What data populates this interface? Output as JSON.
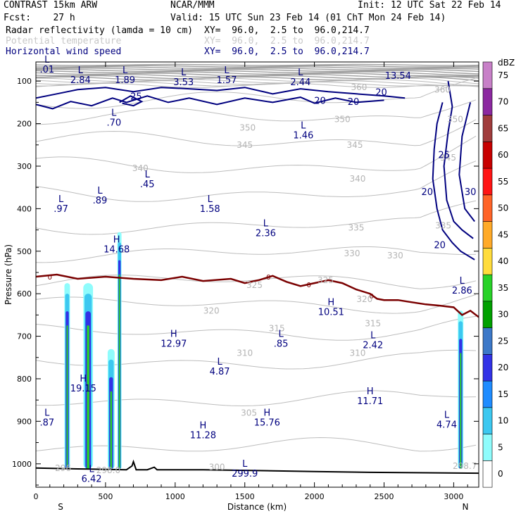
{
  "header": {
    "model": "CONTRAST 15km ARW",
    "center": "NCAR/MMM",
    "init": "Init: 12 UTC Sat 22 Feb 14",
    "fcst": "Fcst:    27 h",
    "valid": "Valid: 15 UTC Sun 23 Feb 14 (01 ChT Mon 24 Feb 14)",
    "fields": [
      {
        "name": "Radar reflectivity (lamda = 10 cm)",
        "xy": "XY=  96.0,  2.5 to  96.0,214.7"
      },
      {
        "name": "Potential temperature",
        "xy": "XY=  96.0,  2.5 to  96.0,214.7"
      },
      {
        "name": "Horizontal wind speed",
        "xy": "XY=  96.0,  2.5 to  96.0,214.7"
      }
    ]
  },
  "chart_data": {
    "type": "cross-section",
    "xlabel": "Distance (km)",
    "ylabel": "Pressure (hPa)",
    "xlim": [
      0,
      3180
    ],
    "ylim": [
      1055,
      55
    ],
    "x_ticks": [
      0,
      500,
      1000,
      1500,
      2000,
      2500,
      3000
    ],
    "y_ticks": [
      100,
      200,
      300,
      400,
      500,
      600,
      700,
      800,
      900,
      1000
    ],
    "end_labels": {
      "left": "S",
      "right": "N"
    },
    "colorbar": {
      "unit": "dBZ",
      "levels": [
        0,
        5,
        10,
        15,
        20,
        25,
        30,
        35,
        40,
        45,
        50,
        55,
        60,
        65,
        70,
        75
      ],
      "colors": [
        "#ffffff",
        "#8ffcfc",
        "#3cc8f0",
        "#1e8cff",
        "#3232e6",
        "#3c78c8",
        "#00a000",
        "#28d228",
        "#ffdc3c",
        "#ffaa28",
        "#ff6428",
        "#ff1414",
        "#c80000",
        "#a03c3c",
        "#8c28a0",
        "#c880c8"
      ]
    },
    "reflectivity_columns": [
      {
        "x": 225,
        "top": 575,
        "width": 40
      },
      {
        "x": 375,
        "top": 575,
        "width": 70
      },
      {
        "x": 540,
        "top": 730,
        "width": 50
      },
      {
        "x": 600,
        "top": 455,
        "width": 30
      },
      {
        "x": 3050,
        "top": 640,
        "width": 40
      }
    ],
    "freezing_level": {
      "label": "0",
      "x": [
        0,
        150,
        300,
        500,
        700,
        900,
        1050,
        1200,
        1400,
        1500,
        1600,
        1700,
        1800,
        1900,
        2000,
        2100,
        2200,
        2300,
        2400,
        2450,
        2500,
        2600,
        2700,
        2800,
        2900,
        3000,
        3060,
        3120,
        3180
      ],
      "p": [
        560,
        555,
        565,
        560,
        565,
        568,
        560,
        570,
        565,
        575,
        568,
        558,
        572,
        582,
        575,
        568,
        575,
        590,
        600,
        612,
        615,
        615,
        620,
        625,
        628,
        632,
        650,
        640,
        655
      ]
    },
    "theta_labels": [
      {
        "v": "360",
        "x": 2920,
        "p": 120
      },
      {
        "v": "360",
        "x": 2320,
        "p": 115
      },
      {
        "v": "350",
        "x": 1520,
        "p": 210
      },
      {
        "v": "350",
        "x": 2200,
        "p": 190
      },
      {
        "v": "350",
        "x": 3010,
        "p": 190
      },
      {
        "v": "345",
        "x": 1500,
        "p": 250
      },
      {
        "v": "345",
        "x": 2290,
        "p": 250
      },
      {
        "v": "345",
        "x": 2960,
        "p": 280
      },
      {
        "v": "340",
        "x": 750,
        "p": 305
      },
      {
        "v": "340",
        "x": 2310,
        "p": 330
      },
      {
        "v": "335",
        "x": 2300,
        "p": 445
      },
      {
        "v": "335",
        "x": 2925,
        "p": 440
      },
      {
        "v": "330",
        "x": 2270,
        "p": 505
      },
      {
        "v": "330",
        "x": 2580,
        "p": 510
      },
      {
        "v": "325",
        "x": 1570,
        "p": 580
      },
      {
        "v": "325",
        "x": 2080,
        "p": 568
      },
      {
        "v": "320",
        "x": 1260,
        "p": 640
      },
      {
        "v": "320",
        "x": 2360,
        "p": 613
      },
      {
        "v": "315",
        "x": 1730,
        "p": 682
      },
      {
        "v": "315",
        "x": 2420,
        "p": 670
      },
      {
        "v": "310",
        "x": 1500,
        "p": 740
      },
      {
        "v": "310",
        "x": 2310,
        "p": 740
      },
      {
        "v": "305",
        "x": 1530,
        "p": 880
      },
      {
        "v": "300",
        "x": 1300,
        "p": 1008
      },
      {
        "v": "298.0",
        "x": 520,
        "p": 1015
      },
      {
        "v": "296",
        "x": 195,
        "p": 1010
      },
      {
        "v": "298.7",
        "x": 3080,
        "p": 1005
      }
    ],
    "wind_labels": [
      {
        "v": "25",
        "x": 720,
        "p": 135
      },
      {
        "v": "20",
        "x": 2040,
        "p": 145
      },
      {
        "v": "20",
        "x": 2280,
        "p": 148
      },
      {
        "v": "20",
        "x": 2480,
        "p": 125
      },
      {
        "v": "25",
        "x": 2930,
        "p": 273
      },
      {
        "v": "20",
        "x": 2810,
        "p": 360
      },
      {
        "v": "30",
        "x": 3120,
        "p": 360
      },
      {
        "v": "20",
        "x": 2900,
        "p": 485
      }
    ],
    "extrema": [
      {
        "t": "L",
        "x": 80,
        "p": 60,
        "v": ".01"
      },
      {
        "t": "L",
        "x": 320,
        "p": 85,
        "v": "2.84"
      },
      {
        "t": "L",
        "x": 640,
        "p": 85,
        "v": "1.89"
      },
      {
        "t": "L",
        "x": 1060,
        "p": 90,
        "v": "3.53"
      },
      {
        "t": "L",
        "x": 1370,
        "p": 85,
        "v": "1.57"
      },
      {
        "t": "L",
        "x": 1900,
        "p": 90,
        "v": "2.44"
      },
      {
        "t": "",
        "x": 2600,
        "p": 75,
        "v": "13.54"
      },
      {
        "t": "L",
        "x": 560,
        "p": 185,
        "v": ".70"
      },
      {
        "t": "L",
        "x": 1920,
        "p": 215,
        "v": "1.46"
      },
      {
        "t": "L",
        "x": 800,
        "p": 330,
        "v": ".45"
      },
      {
        "t": "L",
        "x": 460,
        "p": 368,
        "v": ".89"
      },
      {
        "t": "L",
        "x": 180,
        "p": 388,
        "v": ".97"
      },
      {
        "t": "L",
        "x": 1250,
        "p": 388,
        "v": "1.58"
      },
      {
        "t": "L",
        "x": 1650,
        "p": 445,
        "v": "2.36"
      },
      {
        "t": "H",
        "x": 580,
        "p": 483,
        "v": "14.68"
      },
      {
        "t": "L",
        "x": 3060,
        "p": 580,
        "v": "2.86"
      },
      {
        "t": "H",
        "x": 2120,
        "p": 630,
        "v": "10.51"
      },
      {
        "t": "H",
        "x": 990,
        "p": 705,
        "v": "12.97"
      },
      {
        "t": "L",
        "x": 1760,
        "p": 705,
        "v": ".85"
      },
      {
        "t": "L",
        "x": 2420,
        "p": 708,
        "v": "2.42"
      },
      {
        "t": "L",
        "x": 1320,
        "p": 770,
        "v": "4.87"
      },
      {
        "t": "H",
        "x": 340,
        "p": 810,
        "v": "19.15"
      },
      {
        "t": "H",
        "x": 2400,
        "p": 840,
        "v": "11.71"
      },
      {
        "t": "L",
        "x": 80,
        "p": 890,
        "v": ".87"
      },
      {
        "t": "H",
        "x": 1660,
        "p": 890,
        "v": "15.76"
      },
      {
        "t": "L",
        "x": 2950,
        "p": 895,
        "v": "4.74"
      },
      {
        "t": "H",
        "x": 1200,
        "p": 920,
        "v": "11.28"
      },
      {
        "t": "L",
        "x": 1500,
        "p": 1010,
        "v": "299.9"
      },
      {
        "t": "L",
        "x": 400,
        "p": 1023,
        "v": "6.42"
      }
    ]
  }
}
